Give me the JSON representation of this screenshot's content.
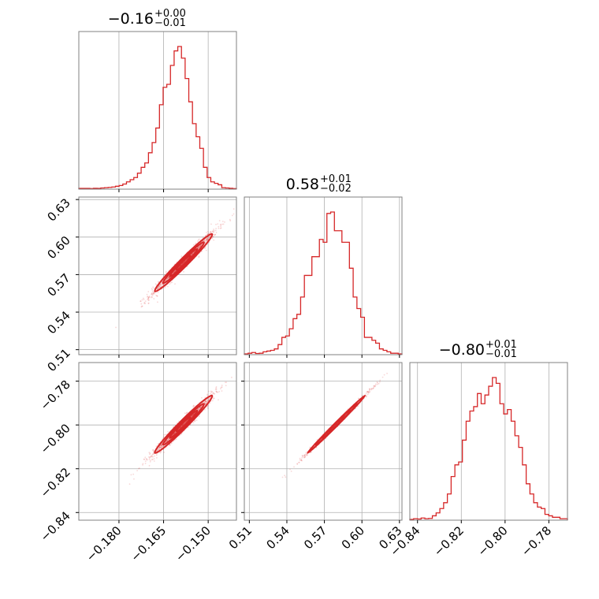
{
  "chart_data": {
    "type": "corner",
    "color": "#d62728",
    "grid": true,
    "parameters": [
      {
        "title": {
          "median": "−0.16",
          "plus": "+0.00",
          "minus": "−0.01"
        },
        "range": [
          -0.1935,
          -0.1405
        ],
        "ticks": [
          -0.18,
          -0.165,
          -0.15
        ],
        "tick_labels": [
          "−0.180",
          "−0.165",
          "−0.150"
        ],
        "hist_peak": -0.1583
      },
      {
        "title": {
          "median": "0.58",
          "plus": "+0.01",
          "minus": "−0.02"
        },
        "range": [
          0.506,
          0.632
        ],
        "ticks": [
          0.51,
          0.54,
          0.57,
          0.6,
          0.63
        ],
        "tick_labels": [
          "0.51",
          "0.54",
          "0.57",
          "0.60",
          "0.63"
        ],
        "hist_peak": 0.5795
      },
      {
        "title": {
          "median": "−0.80",
          "plus": "+0.01",
          "minus": "−0.01"
        },
        "range": [
          -0.8435,
          -0.7715
        ],
        "ticks": [
          -0.84,
          -0.82,
          -0.8,
          -0.78
        ],
        "tick_labels": [
          "−0.84",
          "−0.82",
          "−0.80",
          "−0.78"
        ],
        "hist_peak": -0.7997
      }
    ],
    "histograms": [
      [
        0.005,
        0.005,
        0.005,
        0.004,
        0.006,
        0.005,
        0.008,
        0.01,
        0.012,
        0.015,
        0.02,
        0.025,
        0.035,
        0.05,
        0.065,
        0.08,
        0.11,
        0.15,
        0.18,
        0.25,
        0.32,
        0.42,
        0.58,
        0.7,
        0.72,
        0.85,
        0.95,
        0.98,
        0.9,
        0.76,
        0.6,
        0.45,
        0.36,
        0.28,
        0.15,
        0.08,
        0.05,
        0.04,
        0.03,
        0.01,
        0.008,
        0.006,
        0.004
      ],
      [
        0.005,
        0.01,
        0.015,
        0.008,
        0.01,
        0.02,
        0.025,
        0.03,
        0.04,
        0.07,
        0.12,
        0.13,
        0.18,
        0.25,
        0.28,
        0.4,
        0.55,
        0.55,
        0.68,
        0.68,
        0.8,
        0.78,
        0.98,
        0.99,
        0.86,
        0.86,
        0.78,
        0.78,
        0.6,
        0.4,
        0.32,
        0.26,
        0.12,
        0.12,
        0.1,
        0.08,
        0.04,
        0.03,
        0.02,
        0.01,
        0.01,
        0.005
      ],
      [
        0.005,
        0.01,
        0.008,
        0.015,
        0.01,
        0.012,
        0.03,
        0.05,
        0.08,
        0.12,
        0.18,
        0.3,
        0.38,
        0.4,
        0.55,
        0.68,
        0.75,
        0.78,
        0.87,
        0.8,
        0.86,
        0.92,
        0.98,
        0.94,
        0.8,
        0.73,
        0.76,
        0.68,
        0.58,
        0.5,
        0.38,
        0.25,
        0.18,
        0.12,
        0.09,
        0.08,
        0.04,
        0.03,
        0.02,
        0.02,
        0.01,
        0.01
      ]
    ],
    "correlations": {
      "1-0": 0.98,
      "2-0": 0.98,
      "2-1": 0.997
    }
  }
}
